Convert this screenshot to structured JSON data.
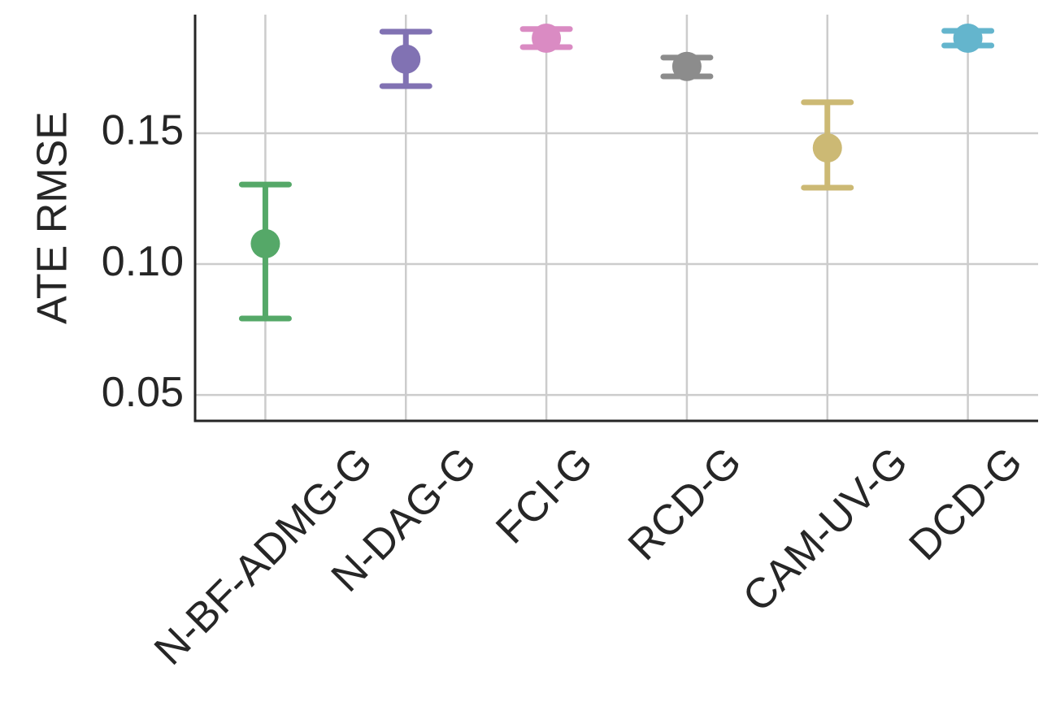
{
  "chart_data": {
    "type": "pointplot",
    "ylabel": "ATE RMSE",
    "categories": [
      "N-BF-ADMG-G",
      "N-DAG-G",
      "FCI-G",
      "RCD-G",
      "CAM-UV-G",
      "DCD-G"
    ],
    "values": [
      0.1078,
      0.1783,
      0.1863,
      0.1755,
      0.1444,
      0.1863
    ],
    "ci_low": [
      0.0792,
      0.168,
      0.1829,
      0.1717,
      0.1292,
      0.1835
    ],
    "ci_high": [
      0.1304,
      0.1888,
      0.1898,
      0.1789,
      0.1618,
      0.1891
    ],
    "colors": [
      "#55a868",
      "#8172b3",
      "#da8bc3",
      "#8c8c8c",
      "#ccb974",
      "#64b5cd"
    ],
    "ylim": [
      0.0401,
      0.1953
    ],
    "yticks": [
      0.05,
      {
        "value": 0.1,
        "label": "0.10"
      },
      0.15
    ],
    "grid": true
  }
}
